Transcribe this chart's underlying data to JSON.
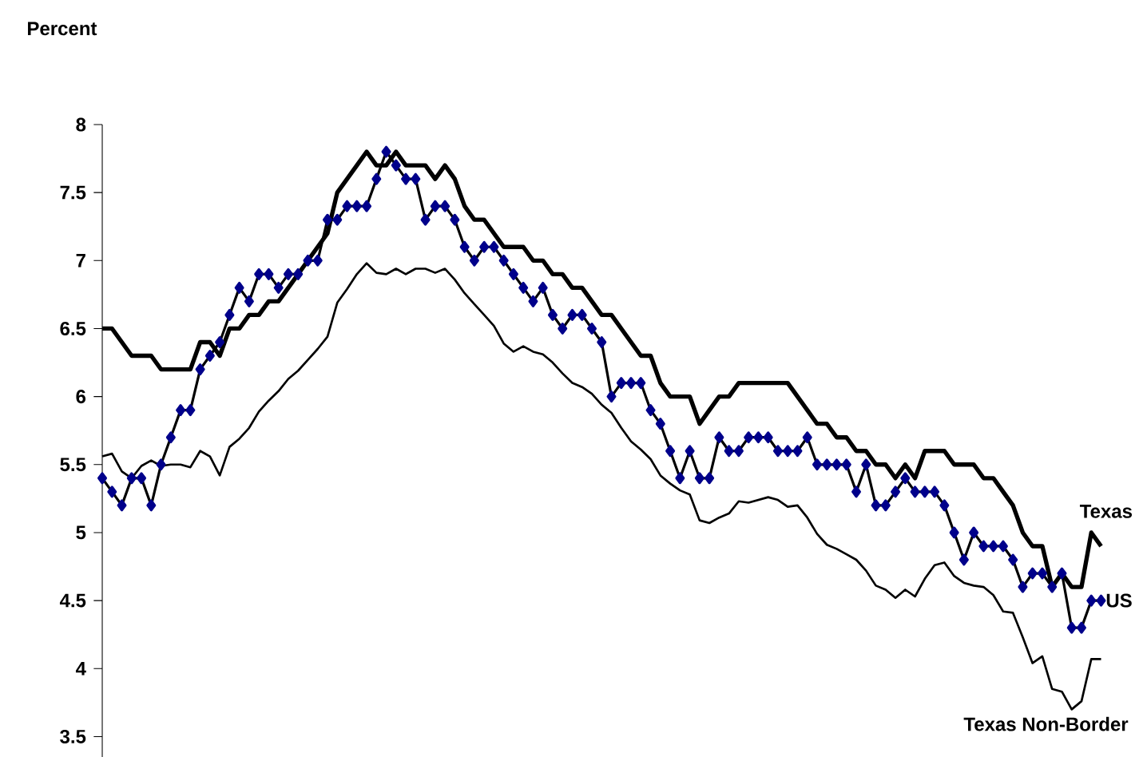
{
  "chart_data": {
    "type": "line",
    "ylabel": "Percent",
    "categories": [
      null,
      null,
      null,
      null,
      null,
      null,
      null,
      null,
      null,
      null,
      null,
      null,
      null,
      null,
      null,
      null,
      null,
      null,
      null,
      null,
      null,
      null,
      null,
      null,
      null,
      null,
      null,
      null,
      null,
      null,
      null,
      null,
      null,
      null,
      null,
      null,
      null,
      null,
      null,
      null,
      null,
      null,
      null,
      null,
      null,
      null,
      null,
      null,
      null,
      null,
      null,
      null,
      null,
      null,
      null,
      null,
      null,
      null,
      null,
      null,
      null,
      null,
      null,
      null,
      null,
      null,
      null,
      null,
      null,
      null,
      null,
      null,
      null,
      null,
      null,
      null,
      null,
      null,
      null,
      null,
      null,
      null,
      null,
      null,
      null,
      null,
      null,
      null,
      null,
      null,
      null,
      null,
      null,
      null,
      null,
      null,
      null,
      null,
      null,
      null,
      null,
      null,
      null
    ],
    "series": [
      {
        "name": "Texas",
        "color": "#000000",
        "marker": "none",
        "values": [
          6.5,
          6.5,
          6.4,
          6.3,
          6.3,
          6.3,
          6.2,
          6.2,
          6.2,
          6.2,
          6.4,
          6.4,
          6.3,
          6.5,
          6.5,
          6.6,
          6.6,
          6.7,
          6.7,
          6.8,
          6.9,
          7.0,
          7.1,
          7.2,
          7.5,
          7.6,
          7.7,
          7.8,
          7.7,
          7.7,
          7.8,
          7.7,
          7.7,
          7.7,
          7.6,
          7.7,
          7.6,
          7.4,
          7.3,
          7.3,
          7.2,
          7.1,
          7.1,
          7.1,
          7.0,
          7.0,
          6.9,
          6.9,
          6.8,
          6.8,
          6.7,
          6.6,
          6.6,
          6.5,
          6.4,
          6.3,
          6.3,
          6.1,
          6.0,
          6.0,
          6.0,
          5.8,
          5.9,
          6.0,
          6.0,
          6.1,
          6.1,
          6.1,
          6.1,
          6.1,
          6.1,
          6.0,
          5.9,
          5.8,
          5.8,
          5.7,
          5.7,
          5.6,
          5.6,
          5.5,
          5.5,
          5.4,
          5.5,
          5.4,
          5.6,
          5.6,
          5.6,
          5.5,
          5.5,
          5.5,
          5.4,
          5.4,
          5.3,
          5.2,
          5.0,
          4.9,
          4.9,
          4.6,
          4.7,
          4.6,
          4.6,
          5.0,
          4.9
        ]
      },
      {
        "name": "US",
        "color": "#00008b",
        "marker": "diamond",
        "values": [
          5.4,
          5.3,
          5.2,
          5.4,
          5.4,
          5.2,
          5.5,
          5.7,
          5.9,
          5.9,
          6.2,
          6.3,
          6.4,
          6.6,
          6.8,
          6.7,
          6.9,
          6.9,
          6.8,
          6.9,
          6.9,
          7.0,
          7.0,
          7.3,
          7.3,
          7.4,
          7.4,
          7.4,
          7.6,
          7.8,
          7.7,
          7.6,
          7.6,
          7.3,
          7.4,
          7.4,
          7.3,
          7.1,
          7.0,
          7.1,
          7.1,
          7.0,
          6.9,
          6.8,
          6.7,
          6.8,
          6.6,
          6.5,
          6.6,
          6.6,
          6.5,
          6.4,
          6.0,
          6.1,
          6.1,
          6.1,
          5.9,
          5.8,
          5.6,
          5.4,
          5.6,
          5.4,
          5.4,
          5.7,
          5.6,
          5.6,
          5.7,
          5.7,
          5.7,
          5.6,
          5.6,
          5.6,
          5.7,
          5.5,
          5.5,
          5.5,
          5.5,
          5.3,
          5.5,
          5.2,
          5.2,
          5.3,
          5.4,
          5.3,
          5.3,
          5.3,
          5.2,
          5.0,
          4.8,
          5.0,
          4.9,
          4.9,
          4.9,
          4.8,
          4.6,
          4.7,
          4.7,
          4.6,
          4.7,
          4.3,
          4.3,
          4.5,
          4.5
        ]
      },
      {
        "name": "Texas Non-Border",
        "color": "#000000",
        "marker": "none",
        "values": [
          5.56,
          5.58,
          5.45,
          5.4,
          5.49,
          5.53,
          5.49,
          5.5,
          5.5,
          5.48,
          5.6,
          5.56,
          5.42,
          5.63,
          5.69,
          5.77,
          5.89,
          5.97,
          6.04,
          6.13,
          6.19,
          6.27,
          6.35,
          6.44,
          6.69,
          6.79,
          6.9,
          6.98,
          6.91,
          6.9,
          6.94,
          6.9,
          6.94,
          6.94,
          6.91,
          6.94,
          6.86,
          6.76,
          6.68,
          6.6,
          6.52,
          6.39,
          6.33,
          6.37,
          6.33,
          6.31,
          6.25,
          6.17,
          6.1,
          6.07,
          6.02,
          5.94,
          5.88,
          5.77,
          5.67,
          5.61,
          5.54,
          5.42,
          5.36,
          5.31,
          5.28,
          5.09,
          5.07,
          5.11,
          5.14,
          5.23,
          5.22,
          5.24,
          5.26,
          5.24,
          5.19,
          5.2,
          5.11,
          4.99,
          4.91,
          4.88,
          4.84,
          4.8,
          4.72,
          4.61,
          4.58,
          4.52,
          4.58,
          4.53,
          4.66,
          4.76,
          4.78,
          4.68,
          4.63,
          4.61,
          4.6,
          4.54,
          4.42,
          4.41,
          4.23,
          4.04,
          4.09,
          3.85,
          3.83,
          3.7,
          3.76,
          4.07,
          4.07
        ]
      }
    ],
    "ylim": [
      3.35,
      8
    ],
    "yticks": [
      3.5,
      4,
      4.5,
      5,
      5.5,
      6,
      6.5,
      7,
      7.5,
      8
    ],
    "legend": false,
    "grid": false,
    "tick_labels": "y"
  }
}
